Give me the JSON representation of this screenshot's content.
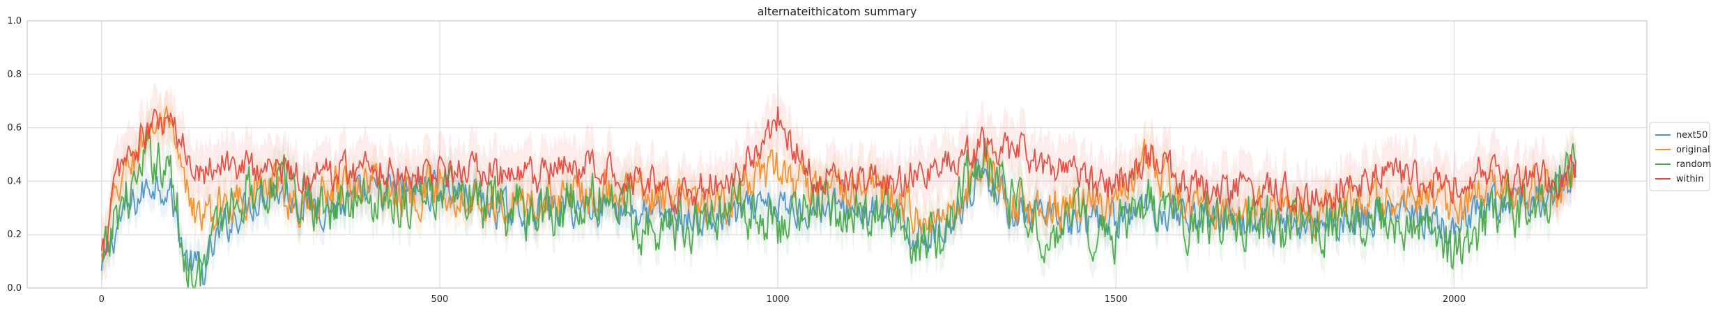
{
  "chart_data": {
    "type": "line",
    "title": "alternateithicatom summary",
    "xlabel": "",
    "ylabel": "",
    "xlim": [
      -110,
      2285
    ],
    "ylim": [
      0.0,
      1.0
    ],
    "xticks": [
      0,
      500,
      1000,
      1500,
      2000
    ],
    "yticks": [
      0.0,
      0.2,
      0.4,
      0.6,
      0.8,
      1.0
    ],
    "xtick_labels": [
      "0",
      "500",
      "1000",
      "1500",
      "2000"
    ],
    "ytick_labels": [
      "0.0",
      "0.2",
      "0.4",
      "0.6",
      "0.8",
      "1.0"
    ],
    "grid": true,
    "legend_placement": "right, outside plot",
    "series": [
      {
        "name": "next50",
        "color": "#4c92c3",
        "x": [
          0,
          25,
          50,
          75,
          100,
          125,
          150,
          175,
          200,
          250,
          300,
          350,
          400,
          450,
          500,
          550,
          600,
          650,
          700,
          750,
          800,
          850,
          900,
          950,
          1000,
          1050,
          1100,
          1150,
          1200,
          1250,
          1300,
          1350,
          1400,
          1450,
          1500,
          1550,
          1600,
          1650,
          1700,
          1750,
          1800,
          1850,
          1900,
          1950,
          2000,
          2050,
          2100,
          2150,
          2180
        ],
        "values": [
          0.05,
          0.25,
          0.32,
          0.4,
          0.38,
          0.1,
          0.06,
          0.2,
          0.28,
          0.38,
          0.32,
          0.3,
          0.35,
          0.36,
          0.38,
          0.34,
          0.28,
          0.3,
          0.3,
          0.32,
          0.28,
          0.26,
          0.25,
          0.28,
          0.3,
          0.3,
          0.3,
          0.28,
          0.2,
          0.22,
          0.45,
          0.28,
          0.25,
          0.24,
          0.25,
          0.3,
          0.28,
          0.27,
          0.25,
          0.24,
          0.25,
          0.26,
          0.28,
          0.27,
          0.2,
          0.3,
          0.32,
          0.35,
          0.4
        ]
      },
      {
        "name": "original",
        "color": "#f28e2b",
        "x": [
          0,
          25,
          50,
          75,
          100,
          125,
          150,
          175,
          200,
          250,
          300,
          350,
          400,
          450,
          500,
          550,
          600,
          650,
          700,
          750,
          800,
          850,
          900,
          950,
          1000,
          1050,
          1100,
          1150,
          1200,
          1250,
          1300,
          1350,
          1400,
          1450,
          1500,
          1550,
          1600,
          1650,
          1700,
          1750,
          1800,
          1850,
          1900,
          1950,
          2000,
          2050,
          2100,
          2150,
          2180
        ],
        "values": [
          0.1,
          0.38,
          0.5,
          0.62,
          0.58,
          0.35,
          0.25,
          0.3,
          0.35,
          0.38,
          0.3,
          0.4,
          0.4,
          0.35,
          0.38,
          0.35,
          0.3,
          0.33,
          0.36,
          0.38,
          0.36,
          0.32,
          0.3,
          0.35,
          0.45,
          0.35,
          0.37,
          0.38,
          0.28,
          0.26,
          0.48,
          0.32,
          0.3,
          0.3,
          0.35,
          0.48,
          0.3,
          0.32,
          0.3,
          0.3,
          0.28,
          0.3,
          0.32,
          0.33,
          0.3,
          0.35,
          0.35,
          0.38,
          0.42
        ]
      },
      {
        "name": "random",
        "color": "#4aa64a",
        "x": [
          0,
          25,
          50,
          75,
          100,
          125,
          150,
          175,
          200,
          250,
          300,
          350,
          400,
          450,
          500,
          550,
          600,
          650,
          700,
          750,
          800,
          850,
          900,
          950,
          1000,
          1050,
          1100,
          1150,
          1200,
          1250,
          1300,
          1350,
          1400,
          1450,
          1500,
          1550,
          1600,
          1650,
          1700,
          1750,
          1800,
          1850,
          1900,
          1950,
          2000,
          2050,
          2100,
          2150,
          2180
        ],
        "values": [
          0.05,
          0.3,
          0.38,
          0.5,
          0.45,
          0.1,
          0.05,
          0.25,
          0.35,
          0.4,
          0.35,
          0.3,
          0.35,
          0.33,
          0.36,
          0.32,
          0.28,
          0.3,
          0.3,
          0.35,
          0.25,
          0.22,
          0.28,
          0.3,
          0.25,
          0.3,
          0.28,
          0.3,
          0.15,
          0.2,
          0.52,
          0.28,
          0.22,
          0.24,
          0.22,
          0.3,
          0.24,
          0.25,
          0.25,
          0.22,
          0.24,
          0.23,
          0.25,
          0.26,
          0.12,
          0.28,
          0.3,
          0.38,
          0.5
        ]
      },
      {
        "name": "within",
        "color": "#e04a3f",
        "x": [
          0,
          25,
          50,
          75,
          100,
          125,
          150,
          175,
          200,
          250,
          300,
          350,
          400,
          450,
          500,
          550,
          600,
          650,
          700,
          750,
          800,
          850,
          900,
          950,
          1000,
          1050,
          1100,
          1150,
          1200,
          1250,
          1300,
          1350,
          1400,
          1450,
          1500,
          1550,
          1600,
          1650,
          1700,
          1750,
          1800,
          1850,
          1900,
          1950,
          2000,
          2050,
          2100,
          2150,
          2180
        ],
        "values": [
          0.1,
          0.45,
          0.52,
          0.6,
          0.62,
          0.5,
          0.45,
          0.48,
          0.45,
          0.45,
          0.42,
          0.44,
          0.45,
          0.44,
          0.43,
          0.45,
          0.4,
          0.42,
          0.45,
          0.45,
          0.42,
          0.35,
          0.38,
          0.45,
          0.65,
          0.42,
          0.42,
          0.4,
          0.42,
          0.45,
          0.52,
          0.52,
          0.45,
          0.4,
          0.38,
          0.5,
          0.38,
          0.36,
          0.38,
          0.36,
          0.35,
          0.4,
          0.42,
          0.4,
          0.4,
          0.45,
          0.42,
          0.4,
          0.45
        ]
      }
    ]
  }
}
